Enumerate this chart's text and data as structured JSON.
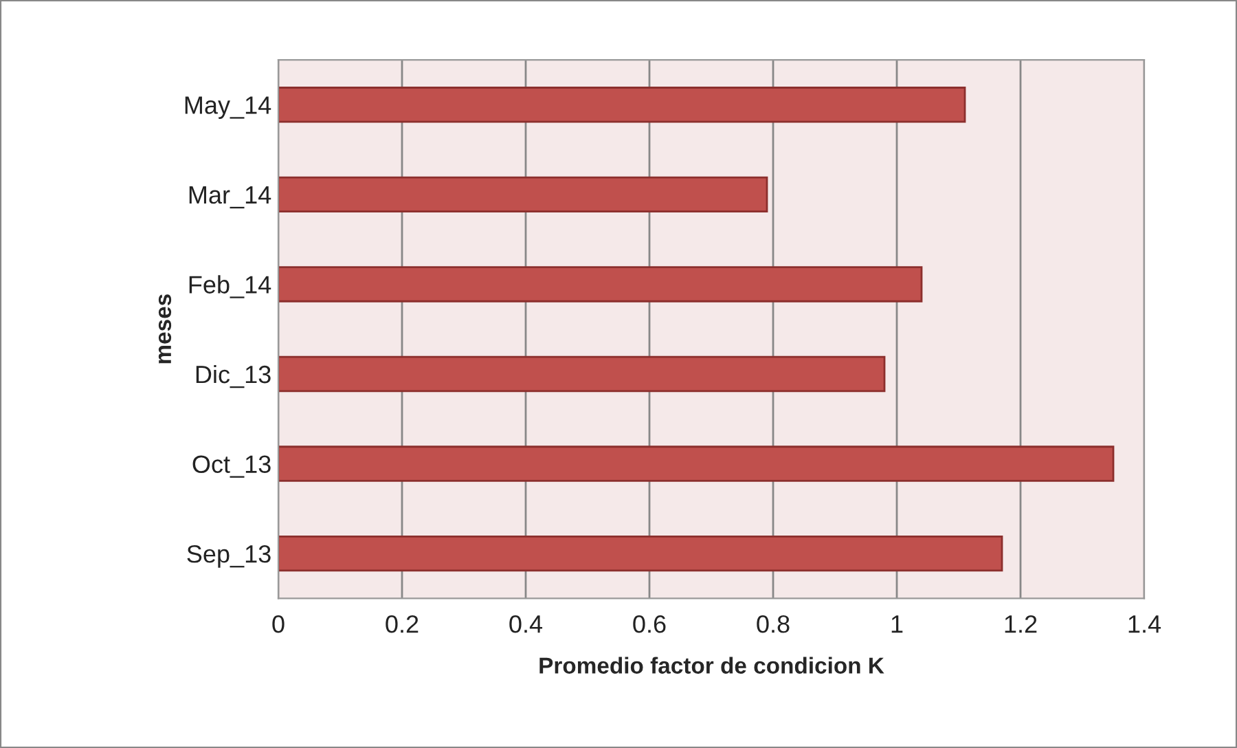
{
  "chart_data": {
    "type": "bar",
    "orientation": "horizontal",
    "categories": [
      "May_14",
      "Mar_14",
      "Feb_14",
      "Dic_13",
      "Oct_13",
      "Sep_13"
    ],
    "values": [
      1.11,
      0.79,
      1.04,
      0.98,
      1.35,
      1.17
    ],
    "color": "#c0504d",
    "xlabel": "Promedio factor de condicion K",
    "ylabel": "meses",
    "xlim": [
      0,
      1.4
    ],
    "xticks": [
      0,
      0.2,
      0.4,
      0.6,
      0.8,
      1,
      1.2,
      1.4
    ],
    "grid": "x"
  }
}
